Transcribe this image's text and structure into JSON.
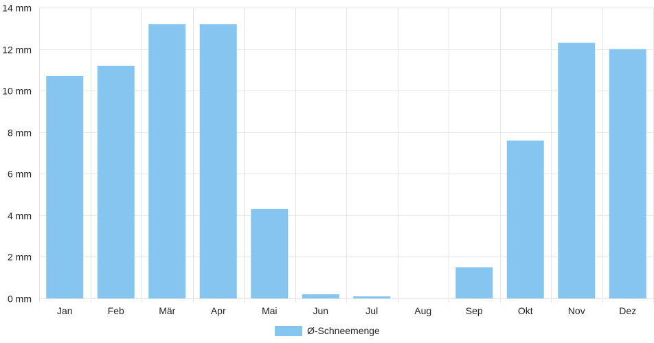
{
  "chart_data": {
    "type": "bar",
    "categories": [
      "Jan",
      "Feb",
      "Mär",
      "Apr",
      "Mai",
      "Jun",
      "Jul",
      "Aug",
      "Sep",
      "Okt",
      "Nov",
      "Dez"
    ],
    "series": [
      {
        "name": "Ø-Schneemenge",
        "values": [
          10.7,
          11.2,
          13.2,
          13.2,
          4.3,
          0.2,
          0.1,
          0,
          1.5,
          7.6,
          12.3,
          12.0
        ],
        "color": "#87c5f1"
      }
    ],
    "y_unit": "mm",
    "ylim": [
      0,
      14
    ],
    "y_ticks": [
      "0 mm",
      "2 mm",
      "4 mm",
      "6 mm",
      "8 mm",
      "10 mm",
      "12 mm",
      "14 mm"
    ],
    "grid": true,
    "legend_position": "bottom"
  }
}
